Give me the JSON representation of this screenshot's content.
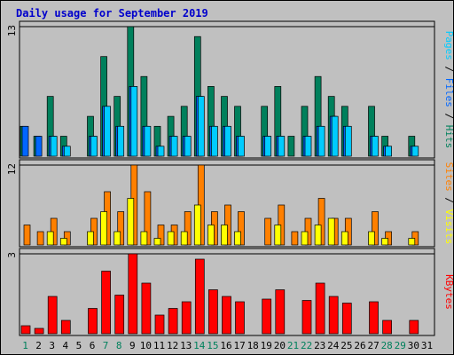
{
  "chart_data": {
    "type": "bar",
    "title": "Daily usage for September 2019",
    "days": [
      "1",
      "2",
      "3",
      "4",
      "5",
      "6",
      "7",
      "8",
      "9",
      "10",
      "11",
      "12",
      "13",
      "14",
      "15",
      "16",
      "17",
      "18",
      "19",
      "20",
      "21",
      "22",
      "23",
      "24",
      "25",
      "26",
      "27",
      "28",
      "29",
      "30",
      "31"
    ],
    "weekend_days": [
      "1",
      "7",
      "8",
      "14",
      "15",
      "21",
      "22",
      "28",
      "29"
    ],
    "panels": [
      {
        "name": "hits-files-pages",
        "ymax": 13,
        "ymax_label": "13",
        "legend": [
          {
            "text": "Pages",
            "color": "#00ccff"
          },
          {
            "text": " / ",
            "color": "#000000"
          },
          {
            "text": "Files",
            "color": "#0066ff"
          },
          {
            "text": " / ",
            "color": "#000000"
          },
          {
            "text": "Hits",
            "color": "#00805c"
          }
        ],
        "series": [
          {
            "name": "Hits",
            "color": "#00805c",
            "values": [
              3,
              2,
              6,
              2,
              0,
              4,
              10,
              6,
              13,
              8,
              3,
              4,
              5,
              12,
              7,
              6,
              5,
              0,
              5,
              7,
              2,
              5,
              8,
              6,
              5,
              0,
              5,
              2,
              0,
              2,
              0
            ]
          },
          {
            "name": "Files",
            "color": "#0066ff",
            "values": [
              3,
              2,
              2,
              1,
              0,
              2,
              5,
              3,
              7,
              3,
              1,
              2,
              2,
              6,
              3,
              3,
              2,
              0,
              2,
              2,
              0,
              2,
              3,
              4,
              3,
              0,
              2,
              1,
              0,
              1,
              0
            ]
          },
          {
            "name": "Pages",
            "color": "#00ccff",
            "values": [
              0,
              0,
              2,
              1,
              0,
              2,
              5,
              3,
              7,
              3,
              1,
              2,
              2,
              6,
              3,
              3,
              2,
              0,
              2,
              2,
              0,
              2,
              3,
              4,
              3,
              0,
              2,
              1,
              0,
              1,
              0
            ]
          }
        ]
      },
      {
        "name": "sites-visits",
        "ymax": 12,
        "ymax_label": "12",
        "legend": [
          {
            "text": "Sites",
            "color": "#ff8000"
          },
          {
            "text": " / ",
            "color": "#000000"
          },
          {
            "text": "Visits",
            "color": "#ffff00"
          }
        ],
        "series": [
          {
            "name": "Sites",
            "color": "#ff8000",
            "values": [
              3,
              2,
              4,
              2,
              0,
              4,
              8,
              5,
              12,
              8,
              3,
              3,
              5,
              12,
              5,
              6,
              5,
              0,
              4,
              6,
              2,
              4,
              7,
              4,
              4,
              0,
              5,
              2,
              0,
              2,
              0
            ]
          },
          {
            "name": "Visits",
            "color": "#ffff00",
            "values": [
              0,
              0,
              2,
              1,
              0,
              2,
              5,
              2,
              7,
              2,
              1,
              2,
              2,
              6,
              3,
              3,
              2,
              0,
              0,
              3,
              0,
              2,
              3,
              4,
              2,
              0,
              2,
              1,
              0,
              1,
              0
            ]
          }
        ]
      },
      {
        "name": "kbytes",
        "ymax": 3,
        "ymax_label": "3",
        "legend": [
          {
            "text": "KBytes",
            "color": "#ff0000"
          }
        ],
        "series": [
          {
            "name": "KBytes",
            "color": "#ff0000",
            "values": [
              0.3,
              0.2,
              1.4,
              0.5,
              0,
              0.95,
              2.35,
              1.45,
              3,
              1.9,
              0.7,
              0.95,
              1.2,
              2.8,
              1.65,
              1.4,
              1.2,
              0,
              1.3,
              1.65,
              0,
              1.25,
              1.9,
              1.4,
              1.15,
              0,
              1.2,
              0.5,
              0,
              0.5,
              0
            ]
          }
        ]
      }
    ]
  }
}
